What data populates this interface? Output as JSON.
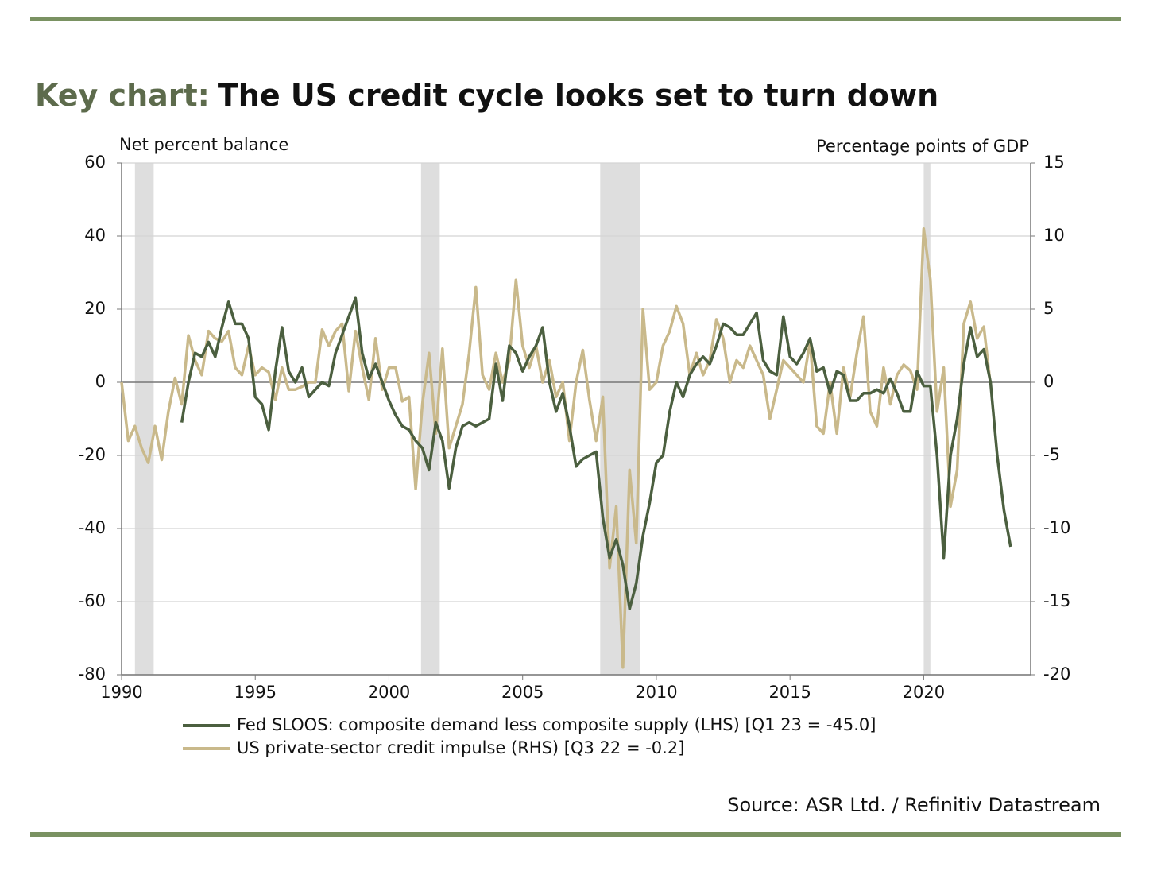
{
  "chart_data": {
    "type": "line",
    "title_prefix": "Key chart:",
    "title": "The US credit cycle looks set to turn down",
    "y_label": "Net percent balance",
    "y2_label": "Percentage points of GDP",
    "source": "Source: ASR Ltd. / Refinitiv Datastream",
    "xlim": [
      1990,
      2024
    ],
    "xticks": [
      1990,
      1995,
      2000,
      2005,
      2010,
      2015,
      2020
    ],
    "ylim": [
      -80,
      60
    ],
    "yticks": [
      -80,
      -60,
      -40,
      -20,
      0,
      20,
      40,
      60
    ],
    "y2lim": [
      -20,
      15
    ],
    "y2ticks": [
      -20,
      -15,
      -10,
      -5,
      0,
      5,
      10,
      15
    ],
    "grid": true,
    "recessions": [
      [
        1990.5,
        1991.2
      ],
      [
        2001.2,
        2001.9
      ],
      [
        2007.9,
        2009.4
      ],
      [
        2020.0,
        2020.25
      ]
    ],
    "series": [
      {
        "name": "Fed SLOOS: composite demand less composite supply (LHS) [Q1 23 = -45.0]",
        "color": "#4b5f3f",
        "axis": "y",
        "x": [
          1992.25,
          1992.5,
          1992.75,
          1993,
          1993.25,
          1993.5,
          1993.75,
          1994,
          1994.25,
          1994.5,
          1994.75,
          1995,
          1995.25,
          1995.5,
          1995.75,
          1996,
          1996.25,
          1996.5,
          1996.75,
          1997,
          1997.25,
          1997.5,
          1997.75,
          1998,
          1998.25,
          1998.5,
          1998.75,
          1999,
          1999.25,
          1999.5,
          1999.75,
          2000,
          2000.25,
          2000.5,
          2000.75,
          2001,
          2001.25,
          2001.5,
          2001.75,
          2002,
          2002.25,
          2002.5,
          2002.75,
          2003,
          2003.25,
          2003.5,
          2003.75,
          2004,
          2004.25,
          2004.5,
          2004.75,
          2005,
          2005.25,
          2005.5,
          2005.75,
          2006,
          2006.25,
          2006.5,
          2006.75,
          2007,
          2007.25,
          2007.5,
          2007.75,
          2008,
          2008.25,
          2008.5,
          2008.75,
          2009,
          2009.25,
          2009.5,
          2009.75,
          2010,
          2010.25,
          2010.5,
          2010.75,
          2011,
          2011.25,
          2011.5,
          2011.75,
          2012,
          2012.25,
          2012.5,
          2012.75,
          2013,
          2013.25,
          2013.5,
          2013.75,
          2014,
          2014.25,
          2014.5,
          2014.75,
          2015,
          2015.25,
          2015.5,
          2015.75,
          2016,
          2016.25,
          2016.5,
          2016.75,
          2017,
          2017.25,
          2017.5,
          2017.75,
          2018,
          2018.25,
          2018.5,
          2018.75,
          2019,
          2019.25,
          2019.5,
          2019.75,
          2020,
          2020.25,
          2020.5,
          2020.75,
          2021,
          2021.25,
          2021.5,
          2021.75,
          2022,
          2022.25,
          2022.5,
          2022.75,
          2023,
          2023.25
        ],
        "values": [
          -11,
          0,
          8,
          7,
          11,
          7,
          15,
          22,
          16,
          16,
          12,
          -4,
          -6,
          -13,
          3,
          15,
          3,
          0,
          4,
          -4,
          -2,
          0,
          -1,
          8,
          13,
          18,
          23,
          8,
          1,
          5,
          0,
          -5,
          -9,
          -12,
          -13,
          -16,
          -18,
          -24,
          -11,
          -16,
          -29,
          -18,
          -12,
          -11,
          -12,
          -11,
          -10,
          5,
          -5,
          10,
          8,
          3,
          7,
          10,
          15,
          0,
          -8,
          -3,
          -12,
          -23,
          -21,
          -20,
          -19,
          -37,
          -48,
          -43,
          -50,
          -62,
          -55,
          -42,
          -33,
          -22,
          -20,
          -8,
          0,
          -4,
          2,
          5,
          7,
          5,
          10,
          16,
          15,
          13,
          13,
          16,
          19,
          6,
          3,
          2,
          18,
          7,
          5,
          8,
          12,
          3,
          4,
          -3,
          3,
          2,
          -5,
          -5,
          -3,
          -3,
          -2,
          -3,
          1,
          -3,
          -8,
          -8,
          3,
          -1,
          -1,
          -20,
          -48,
          -20,
          -10,
          5,
          15,
          7,
          9,
          0,
          -20,
          -35,
          -45
        ]
      },
      {
        "name": "US private-sector credit impulse (RHS) [Q3 22 = -0.2]",
        "color": "#c9b98b",
        "axis": "y2",
        "x": [
          1990,
          1990.25,
          1990.5,
          1990.75,
          1991,
          1991.25,
          1991.5,
          1991.75,
          1992,
          1992.25,
          1992.5,
          1992.75,
          1993,
          1993.25,
          1993.5,
          1993.75,
          1994,
          1994.25,
          1994.5,
          1994.75,
          1995,
          1995.25,
          1995.5,
          1995.75,
          1996,
          1996.25,
          1996.5,
          1996.75,
          1997,
          1997.25,
          1997.5,
          1997.75,
          1998,
          1998.25,
          1998.5,
          1998.75,
          1999,
          1999.25,
          1999.5,
          1999.75,
          2000,
          2000.25,
          2000.5,
          2000.75,
          2001,
          2001.25,
          2001.5,
          2001.75,
          2002,
          2002.25,
          2002.5,
          2002.75,
          2003,
          2003.25,
          2003.5,
          2003.75,
          2004,
          2004.25,
          2004.5,
          2004.75,
          2005,
          2005.25,
          2005.5,
          2005.75,
          2006,
          2006.25,
          2006.5,
          2006.75,
          2007,
          2007.25,
          2007.5,
          2007.75,
          2008,
          2008.25,
          2008.5,
          2008.75,
          2009,
          2009.25,
          2009.5,
          2009.75,
          2010,
          2010.25,
          2010.5,
          2010.75,
          2011,
          2011.25,
          2011.5,
          2011.75,
          2012,
          2012.25,
          2012.5,
          2012.75,
          2013,
          2013.25,
          2013.5,
          2013.75,
          2014,
          2014.25,
          2014.5,
          2014.75,
          2015,
          2015.25,
          2015.5,
          2015.75,
          2016,
          2016.25,
          2016.5,
          2016.75,
          2017,
          2017.25,
          2017.5,
          2017.75,
          2018,
          2018.25,
          2018.5,
          2018.75,
          2019,
          2019.25,
          2019.5,
          2019.75,
          2020,
          2020.25,
          2020.5,
          2020.75,
          2021,
          2021.25,
          2021.5,
          2021.75,
          2022,
          2022.25,
          2022.5
        ],
        "values": [
          0,
          -4,
          -3,
          -4.5,
          -5.5,
          -3,
          -5.3,
          -2,
          0.3,
          -1.5,
          3.2,
          1.5,
          0.5,
          3.5,
          3,
          2.8,
          3.5,
          1,
          0.5,
          2.5,
          0.5,
          1,
          0.7,
          -1.2,
          1,
          -0.5,
          -0.5,
          -0.3,
          0,
          0,
          3.6,
          2.5,
          3.5,
          4,
          -0.6,
          3.5,
          1,
          -1.2,
          3,
          -0.5,
          1,
          1,
          -1.3,
          -1,
          -7.3,
          -1.5,
          2,
          -3.5,
          2.3,
          -4.5,
          -3,
          -1.5,
          2,
          6.5,
          0.5,
          -0.5,
          2,
          0,
          1.5,
          7,
          2.5,
          1,
          2.5,
          0,
          1.5,
          -1,
          0,
          -4,
          0,
          2.2,
          -1.2,
          -4,
          -1,
          -12.7,
          -8.5,
          -19.5,
          -6,
          -11,
          5,
          -0.5,
          0,
          2.5,
          3.5,
          5.2,
          4,
          0.5,
          2,
          0.5,
          1.5,
          4.3,
          3,
          0,
          1.5,
          1,
          2.5,
          1.5,
          0.5,
          -2.5,
          -0.5,
          1.5,
          1,
          0.5,
          0,
          2.8,
          -3,
          -3.5,
          0,
          -3.5,
          1,
          -1,
          2,
          4.5,
          -2,
          -3,
          1,
          -1.5,
          0.5,
          1.2,
          0.8,
          -0.5,
          10.5,
          7,
          -2,
          1,
          -8.5,
          -6,
          4,
          5.5,
          3,
          3.8,
          -0.2
        ]
      }
    ]
  }
}
